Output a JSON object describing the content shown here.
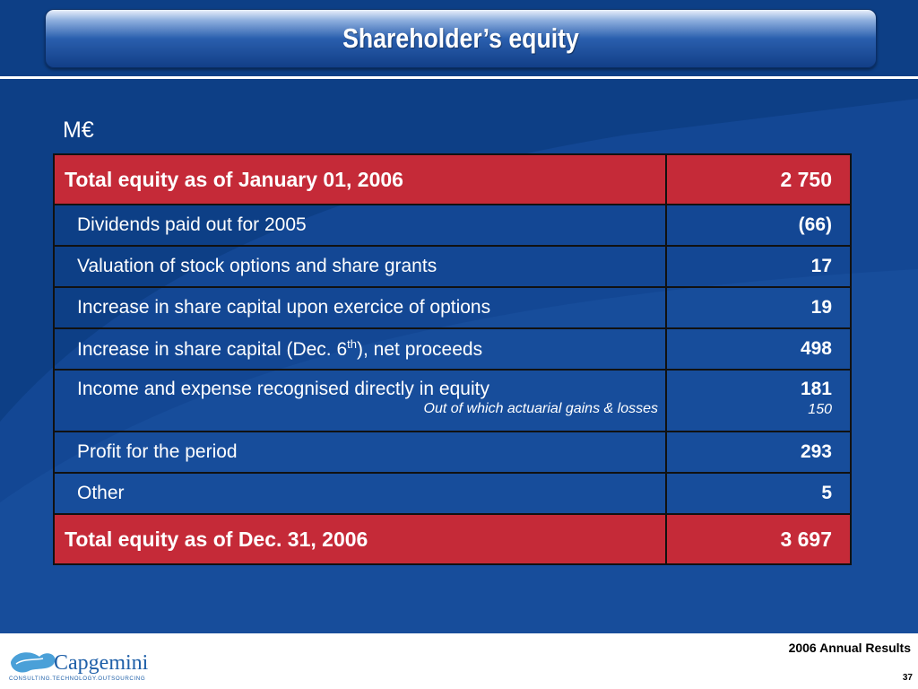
{
  "slide": {
    "title": "Shareholder’s equity",
    "unit": "M€"
  },
  "table": {
    "opening": {
      "label": "Total equity as of January 01, 2006",
      "value": "2 750"
    },
    "rows": [
      {
        "label": "Dividends paid out for 2005",
        "value": "(66)"
      },
      {
        "label": "Valuation of stock options and share grants",
        "value": "17"
      },
      {
        "label": "Increase in share capital upon exercice of options",
        "value": "19"
      },
      {
        "label_pre": "Increase in share capital (Dec. 6",
        "label_sup": "th",
        "label_post": "), net proceeds",
        "value": "498"
      },
      {
        "label": "Income and expense recognised directly in equity",
        "value": "181",
        "note": "Out of which actuarial gains & losses",
        "note_value": "150"
      },
      {
        "label": "Profit for the period",
        "value": "293"
      },
      {
        "label": "Other",
        "value": "5"
      }
    ],
    "closing": {
      "label": "Total equity as of Dec. 31, 2006",
      "value": "3 697"
    }
  },
  "footer": {
    "brand": "Capgemini",
    "tagline": "CONSULTING.TECHNOLOGY.OUTSOURCING",
    "report": "2006 Annual Results",
    "page_number": "37"
  },
  "colors": {
    "background": "#0d3f86",
    "header_row": "#c52a38",
    "text": "#ffffff"
  }
}
